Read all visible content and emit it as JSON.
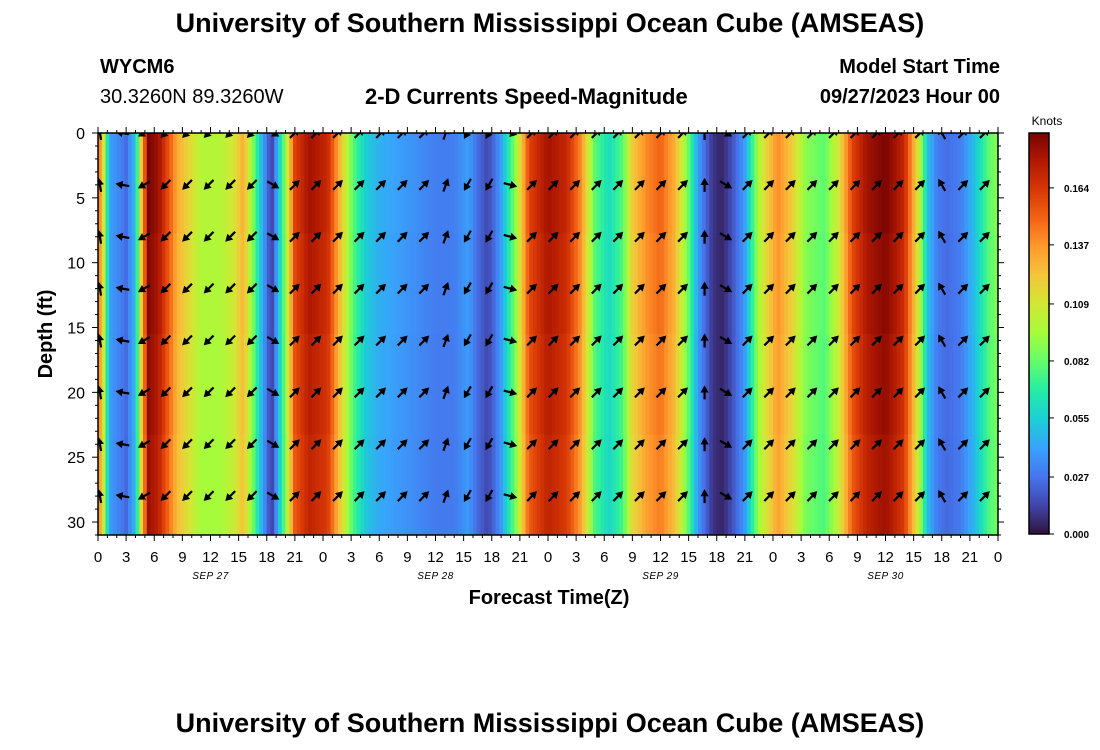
{
  "header": {
    "title": "University of Southern Mississippi Ocean Cube (AMSEAS)",
    "station_id": "WYCM6",
    "station_coords": "30.3260N  89.3260W",
    "subtitle": "2-D Currents Speed-Magnitude",
    "model_start_label": "Model Start Time",
    "model_start_value": "09/27/2023 Hour 00"
  },
  "footer": {
    "title": "University of Southern Mississippi Ocean Cube (AMSEAS)"
  },
  "colors": {
    "colormap": [
      "#30123b",
      "#4145ab",
      "#4675ed",
      "#39a2fc",
      "#1bcfd4",
      "#24eca6",
      "#61fc6c",
      "#a4fc3b",
      "#d1e834",
      "#f3c63a",
      "#fe9b2d",
      "#f36315",
      "#d93806",
      "#b11901",
      "#7a0403"
    ],
    "arrow": "#000000",
    "frame": "#000000"
  },
  "chart_data": {
    "type": "heatmap",
    "title": "2-D Currents Speed-Magnitude",
    "xlabel": "Forecast Time(Z)",
    "ylabel": "Depth (ft)",
    "x_range_hours": [
      0,
      96
    ],
    "ylim": [
      0,
      31
    ],
    "y_inverted": true,
    "x_ticks": [
      {
        "h": 0,
        "label": "0"
      },
      {
        "h": 3,
        "label": "3"
      },
      {
        "h": 6,
        "label": "6"
      },
      {
        "h": 9,
        "label": "9"
      },
      {
        "h": 12,
        "label": "12"
      },
      {
        "h": 15,
        "label": "15"
      },
      {
        "h": 18,
        "label": "18"
      },
      {
        "h": 21,
        "label": "21"
      },
      {
        "h": 24,
        "label": "0"
      },
      {
        "h": 27,
        "label": "3"
      },
      {
        "h": 30,
        "label": "6"
      },
      {
        "h": 33,
        "label": "9"
      },
      {
        "h": 36,
        "label": "12"
      },
      {
        "h": 39,
        "label": "15"
      },
      {
        "h": 42,
        "label": "18"
      },
      {
        "h": 45,
        "label": "21"
      },
      {
        "h": 48,
        "label": "0"
      },
      {
        "h": 51,
        "label": "3"
      },
      {
        "h": 54,
        "label": "6"
      },
      {
        "h": 57,
        "label": "9"
      },
      {
        "h": 60,
        "label": "12"
      },
      {
        "h": 63,
        "label": "15"
      },
      {
        "h": 66,
        "label": "18"
      },
      {
        "h": 69,
        "label": "21"
      },
      {
        "h": 72,
        "label": "0"
      },
      {
        "h": 75,
        "label": "3"
      },
      {
        "h": 78,
        "label": "6"
      },
      {
        "h": 81,
        "label": "9"
      },
      {
        "h": 84,
        "label": "12"
      },
      {
        "h": 87,
        "label": "15"
      },
      {
        "h": 90,
        "label": "18"
      },
      {
        "h": 93,
        "label": "21"
      },
      {
        "h": 96,
        "label": "0"
      }
    ],
    "date_labels": [
      {
        "h": 12,
        "label": "SEP 27"
      },
      {
        "h": 36,
        "label": "SEP 28"
      },
      {
        "h": 60,
        "label": "SEP 29"
      },
      {
        "h": 84,
        "label": "SEP 30"
      }
    ],
    "y_ticks": [
      0,
      5,
      10,
      15,
      20,
      25,
      30
    ],
    "colorbar": {
      "label": "Knots",
      "min": 0,
      "max": 0.19,
      "ticks": [
        "0.164",
        "0.137",
        "0.109",
        "0.082",
        "0.055",
        "0.027",
        "0.000"
      ],
      "tick_values": [
        0.164,
        0.137,
        0.109,
        0.082,
        0.055,
        0.027,
        0.0
      ]
    },
    "time_profile": {
      "hours": [
        0,
        0.5,
        1.2,
        2.0,
        3.0,
        4.0,
        4.6,
        5.4,
        6.5,
        8.5,
        11,
        13,
        14.5,
        15.5,
        16.5,
        17.5,
        18.5,
        19.8,
        21,
        22.5,
        24.5,
        26,
        27.2,
        28.5,
        30,
        32,
        34,
        36,
        38,
        39.5,
        40.5,
        41.5,
        42,
        43,
        44.5,
        46,
        48,
        50,
        51.5,
        53,
        54.5,
        56,
        57,
        58.5,
        60,
        61.5,
        62.8,
        64,
        65.5,
        66.5,
        67.5,
        69,
        70.5,
        72.5,
        74,
        75.5,
        77.5,
        79,
        80.5,
        82,
        84,
        86,
        87.5,
        88.5,
        89.5,
        90.5,
        92,
        93.5,
        95,
        96
      ],
      "speed_knots": [
        0.15,
        0.12,
        0.04,
        0.035,
        0.025,
        0.05,
        0.12,
        0.19,
        0.18,
        0.13,
        0.1,
        0.1,
        0.11,
        0.13,
        0.09,
        0.045,
        0.01,
        0.08,
        0.16,
        0.18,
        0.17,
        0.12,
        0.08,
        0.055,
        0.045,
        0.04,
        0.035,
        0.03,
        0.03,
        0.04,
        0.025,
        0.015,
        0.02,
        0.04,
        0.09,
        0.16,
        0.18,
        0.17,
        0.14,
        0.08,
        0.06,
        0.08,
        0.12,
        0.14,
        0.15,
        0.13,
        0.09,
        0.04,
        0.01,
        0.005,
        0.015,
        0.04,
        0.1,
        0.14,
        0.12,
        0.09,
        0.08,
        0.11,
        0.16,
        0.18,
        0.19,
        0.17,
        0.11,
        0.05,
        0.03,
        0.025,
        0.03,
        0.05,
        0.08,
        0.09
      ]
    },
    "arrows": {
      "note": "Current direction arrows at columns every ~2.3 h, rows at depth (ft). Angle in degrees (0=east, 90=north).",
      "rows_depth_ft": [
        0,
        4,
        8,
        12,
        16,
        20,
        24,
        28
      ],
      "columns": [
        {
          "h": 0.2,
          "angle": 100
        },
        {
          "h": 2.6,
          "angle": 170
        },
        {
          "h": 4.9,
          "angle": 210
        },
        {
          "h": 7.2,
          "angle": 225
        },
        {
          "h": 9.5,
          "angle": 225
        },
        {
          "h": 11.8,
          "angle": 225
        },
        {
          "h": 14.1,
          "angle": 225
        },
        {
          "h": 16.4,
          "angle": 225
        },
        {
          "h": 18.7,
          "angle": 330
        },
        {
          "h": 21.0,
          "angle": 45
        },
        {
          "h": 23.3,
          "angle": 45
        },
        {
          "h": 25.6,
          "angle": 45
        },
        {
          "h": 27.9,
          "angle": 45
        },
        {
          "h": 30.2,
          "angle": 45
        },
        {
          "h": 32.5,
          "angle": 45
        },
        {
          "h": 34.8,
          "angle": 45
        },
        {
          "h": 37.1,
          "angle": 70
        },
        {
          "h": 39.4,
          "angle": 240
        },
        {
          "h": 41.7,
          "angle": 240
        },
        {
          "h": 44.0,
          "angle": 345
        },
        {
          "h": 46.3,
          "angle": 45
        },
        {
          "h": 48.6,
          "angle": 45
        },
        {
          "h": 50.9,
          "angle": 45
        },
        {
          "h": 53.2,
          "angle": 45
        },
        {
          "h": 55.5,
          "angle": 45
        },
        {
          "h": 57.8,
          "angle": 45
        },
        {
          "h": 60.1,
          "angle": 45
        },
        {
          "h": 62.4,
          "angle": 45
        },
        {
          "h": 64.7,
          "angle": 90
        },
        {
          "h": 67.0,
          "angle": 330
        },
        {
          "h": 69.3,
          "angle": 45
        },
        {
          "h": 71.6,
          "angle": 45
        },
        {
          "h": 73.9,
          "angle": 45
        },
        {
          "h": 76.2,
          "angle": 45
        },
        {
          "h": 78.5,
          "angle": 45
        },
        {
          "h": 80.8,
          "angle": 45
        },
        {
          "h": 83.1,
          "angle": 45
        },
        {
          "h": 85.4,
          "angle": 45
        },
        {
          "h": 87.7,
          "angle": 45
        },
        {
          "h": 90.0,
          "angle": 120
        },
        {
          "h": 92.3,
          "angle": 45
        },
        {
          "h": 94.6,
          "angle": 45
        }
      ]
    }
  }
}
